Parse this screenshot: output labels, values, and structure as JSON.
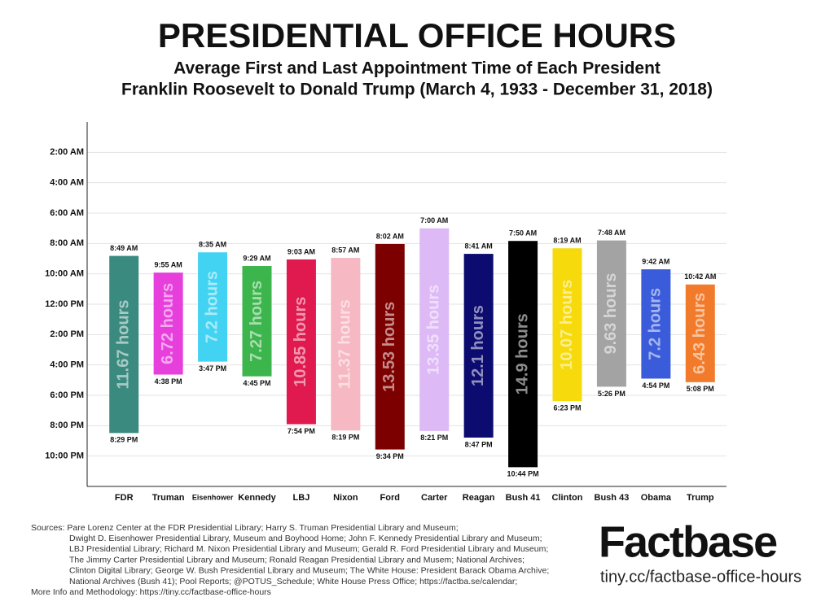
{
  "chart_data": {
    "type": "range_bar",
    "title": "PRESIDENTIAL OFFICE HOURS",
    "subtitle": [
      "Average First and Last Appointment Time of Each President",
      "Franklin Roosevelt to Donald Trump (March 4, 1933 - December 31, 2018)"
    ],
    "categories": [
      "FDR",
      "Truman",
      "Eisenhower",
      "Kennedy",
      "LBJ",
      "Nixon",
      "Ford",
      "Carter",
      "Reagan",
      "Bush 41",
      "Clinton",
      "Bush 43",
      "Obama",
      "Trump"
    ],
    "starts": [
      8.8167,
      9.9167,
      8.5833,
      9.4833,
      9.05,
      8.95,
      8.0333,
      7,
      8.6833,
      7.8333,
      8.3167,
      7.8,
      9.7,
      10.7
    ],
    "start_labels": [
      "8:49 AM",
      "9:55 AM",
      "8:35 AM",
      "9:29 AM",
      "9:03 AM",
      "8:57 AM",
      "8:02 AM",
      "7:00 AM",
      "8:41 AM",
      "7:50 AM",
      "8:19 AM",
      "7:48 AM",
      "9:42 AM",
      "10:42 AM"
    ],
    "ends": [
      20.4833,
      16.6333,
      15.7833,
      16.75,
      19.9,
      20.3167,
      21.5667,
      20.35,
      20.7833,
      22.7333,
      18.3833,
      17.4333,
      16.9,
      17.1333
    ],
    "end_labels": [
      "8:29 PM",
      "4:38 PM",
      "3:47 PM",
      "4:45 PM",
      "7:54 PM",
      "8:19 PM",
      "9:34 PM",
      "8:21 PM",
      "8:47 PM",
      "10:44 PM",
      "6:23 PM",
      "5:26 PM",
      "4:54 PM",
      "5:08 PM"
    ],
    "durations": [
      11.67,
      6.72,
      7.2,
      7.27,
      10.85,
      11.37,
      13.53,
      13.35,
      12.1,
      14.9,
      10.07,
      9.63,
      7.2,
      6.43
    ],
    "duration_labels": [
      "11.67 hours",
      "6.72 hours",
      "7.2 hours",
      "7.27 hours",
      "10.85 hours",
      "11.37 hours",
      "13.53 hours",
      "13.35 hours",
      "12.1 hours",
      "14.9 hours",
      "10.07 hours",
      "9.63 hours",
      "7.2 hours",
      "6.43 hours"
    ],
    "colors": [
      "#3b8a7f",
      "#e63fdc",
      "#43d3f2",
      "#3cb54c",
      "#e0194f",
      "#f6b8c2",
      "#7d0000",
      "#ddb9f6",
      "#0b0b70",
      "#000000",
      "#f6da0b",
      "#a3a3a3",
      "#3b5cda",
      "#f27b2b"
    ],
    "ylim": [
      0,
      24
    ],
    "y_reversed": true,
    "yticks": [
      {
        "value": 2,
        "label": "2:00 AM"
      },
      {
        "value": 4,
        "label": "4:00 AM"
      },
      {
        "value": 6,
        "label": "6:00 AM"
      },
      {
        "value": 8,
        "label": "8:00 AM"
      },
      {
        "value": 10,
        "label": "10:00 AM"
      },
      {
        "value": 12,
        "label": "12:00 PM"
      },
      {
        "value": 14,
        "label": "2:00 PM"
      },
      {
        "value": 16,
        "label": "4:00 PM"
      },
      {
        "value": 18,
        "label": "6:00 PM"
      },
      {
        "value": 20,
        "label": "8:00 PM"
      },
      {
        "value": 22,
        "label": "10:00 PM"
      }
    ],
    "grid": true
  },
  "footer": {
    "sources": [
      "Sources: Pare Lorenz Center at the FDR Presidential Library; Harry S. Truman Presidential Library and Museum;",
      "Dwight D. Eisenhower Presidential Library, Museum and Boyhood Home; John F. Kennedy Presidential Library and Museum;",
      "LBJ Presidential Library; Richard M. Nixon Presidential Library and Museum; Gerald R. Ford Presidential Library and Museum;",
      "The Jimmy Carter Presidential Library and Museum; Ronald Reagan Presidential Library and Musem; National Archives;",
      "Clinton Digital Library; George W. Bush Presidential Library and Museum; The White House: President Barack Obama Archive;",
      "National Archives (Bush 41); Pool Reports; @POTUS_Schedule; White House Press Office; https://factba.se/calendar;",
      "More Info and Methodology: https://tiny.cc/factbase-office-hours"
    ],
    "logo": "Factbase",
    "url": "tiny.cc/factbase-office-hours"
  }
}
